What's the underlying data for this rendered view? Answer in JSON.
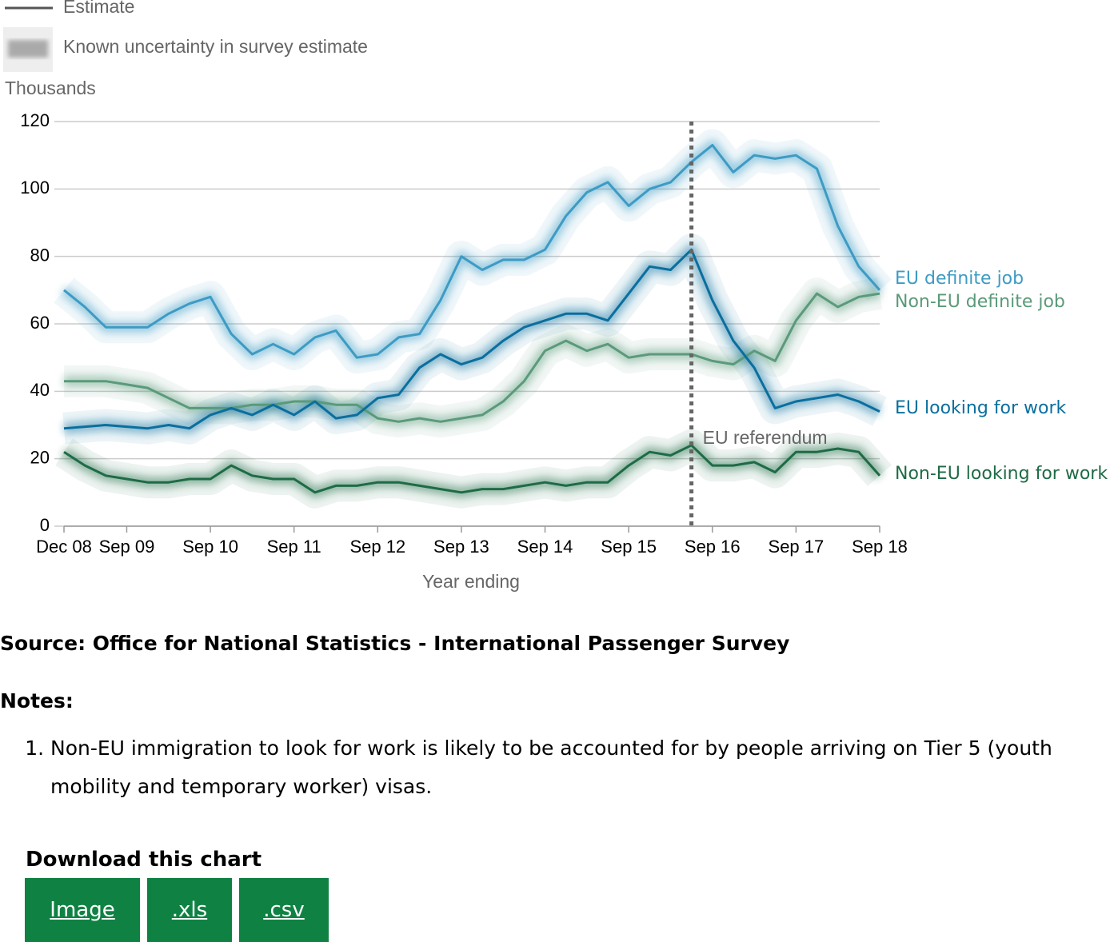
{
  "legend": {
    "estimate": "Estimate",
    "uncertainty": "Known uncertainty in survey estimate"
  },
  "chart_data": {
    "type": "line",
    "y_label": "Thousands",
    "x_label": "Year ending",
    "categories": [
      "Dec 08",
      null,
      null,
      "Sep 09",
      null,
      null,
      null,
      "Sep 10",
      null,
      null,
      null,
      "Sep 11",
      null,
      null,
      null,
      "Sep 12",
      null,
      null,
      null,
      "Sep 13",
      null,
      null,
      null,
      "Sep 14",
      null,
      null,
      null,
      "Sep 15",
      null,
      null,
      null,
      "Sep 16",
      null,
      null,
      null,
      "Sep 17",
      null,
      null,
      null,
      "Sep 18"
    ],
    "ylim": [
      0,
      120
    ],
    "yticks": [
      0,
      20,
      40,
      60,
      80,
      100,
      120
    ],
    "grid": true,
    "annotation": "EU referendum",
    "series": [
      {
        "name": "EU definite job",
        "color": "#3d9bc4",
        "values": [
          70,
          65,
          59,
          59,
          59,
          63,
          66,
          68,
          57,
          51,
          54,
          51,
          56,
          58,
          50,
          51,
          56,
          57,
          67,
          80,
          76,
          79,
          79,
          82,
          92,
          99,
          102,
          95,
          100,
          102,
          108,
          113,
          105,
          110,
          109,
          110,
          106,
          89,
          77,
          70
        ]
      },
      {
        "name": "Non-EU definite job",
        "color": "#5a9a7a",
        "values": [
          43,
          43,
          43,
          42,
          41,
          38,
          35,
          35,
          35,
          36,
          36,
          37,
          37,
          36,
          36,
          32,
          31,
          32,
          31,
          32,
          33,
          37,
          43,
          52,
          55,
          52,
          54,
          50,
          51,
          51,
          51,
          49,
          48,
          52,
          49,
          61,
          69,
          65,
          68,
          69
        ]
      },
      {
        "name": "EU looking for work",
        "color": "#0a6f9e",
        "values": [
          29,
          29.5,
          30,
          29.5,
          29,
          30,
          29,
          33,
          35,
          33,
          36,
          33,
          37,
          32,
          33,
          38,
          39,
          47,
          51,
          48,
          50,
          55,
          59,
          61,
          63,
          63,
          61,
          69,
          77,
          76,
          82,
          67,
          55,
          47,
          35,
          37,
          38,
          39,
          37,
          34
        ]
      },
      {
        "name": "Non-EU looking for work",
        "color": "#1e6b45",
        "values": [
          22,
          18,
          15,
          14,
          13,
          13,
          14,
          14,
          18,
          15,
          14,
          14,
          10,
          12,
          12,
          13,
          13,
          12,
          11,
          10,
          11,
          11,
          12,
          13,
          12,
          13,
          13,
          18,
          22,
          21,
          24,
          18,
          18,
          19,
          16,
          22,
          22,
          23,
          22,
          15
        ]
      }
    ]
  },
  "source": "Source: Office for National Statistics - International Passenger Survey",
  "notes": {
    "heading": "Notes:",
    "items": [
      "Non-EU immigration to look for work is likely to be accounted for by people arriving on Tier 5 (youth mobility and temporary worker) visas."
    ]
  },
  "download": {
    "heading": "Download this chart",
    "buttons": [
      "Image",
      ".xls",
      ".csv"
    ]
  }
}
